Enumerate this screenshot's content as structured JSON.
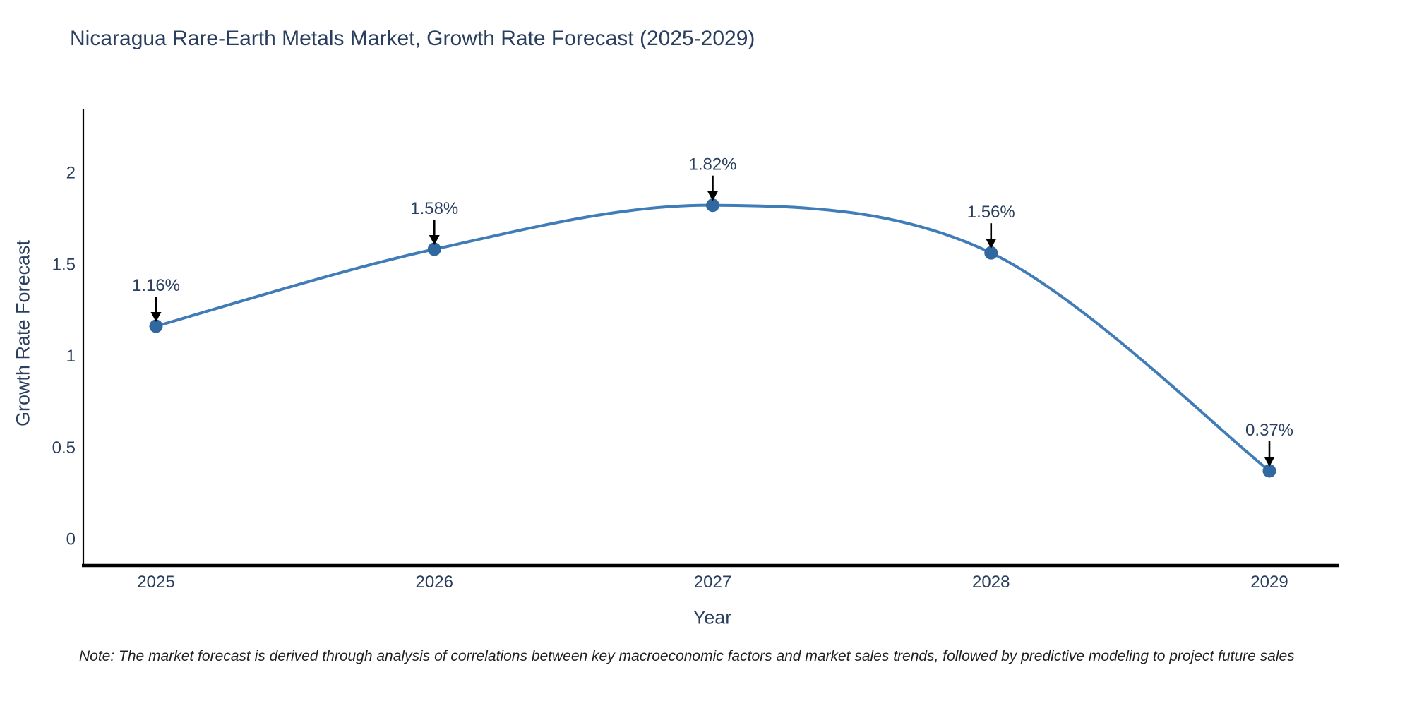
{
  "chart_data": {
    "type": "line",
    "title": "Nicaragua Rare-Earth Metals Market, Growth Rate Forecast (2025-2029)",
    "xlabel": "Year",
    "ylabel": "Growth Rate Forecast",
    "categories": [
      "2025",
      "2026",
      "2027",
      "2028",
      "2029"
    ],
    "series": [
      {
        "name": "Growth Rate Forecast",
        "values": [
          1.16,
          1.58,
          1.82,
          1.56,
          0.37
        ],
        "point_labels": [
          "1.16%",
          "1.58%",
          "1.82%",
          "1.56%",
          "0.37%"
        ]
      }
    ],
    "ytick_values": [
      0,
      0.5,
      1,
      1.5,
      2
    ],
    "ytick_labels": [
      "0",
      "0.5",
      "1",
      "1.5",
      "2"
    ],
    "ylim": [
      -0.15,
      2.35
    ],
    "line_shape": "spline",
    "grid": false,
    "legend_position": "none",
    "colors": {
      "line": "#407db8",
      "marker": "#31689f",
      "axis": "#000000",
      "arrow": "#000000",
      "text": "#2a3f5f"
    }
  },
  "footnote": "Note: The market forecast is derived through analysis of correlations between key macroeconomic factors and market sales trends, followed by predictive modeling to project future sales"
}
